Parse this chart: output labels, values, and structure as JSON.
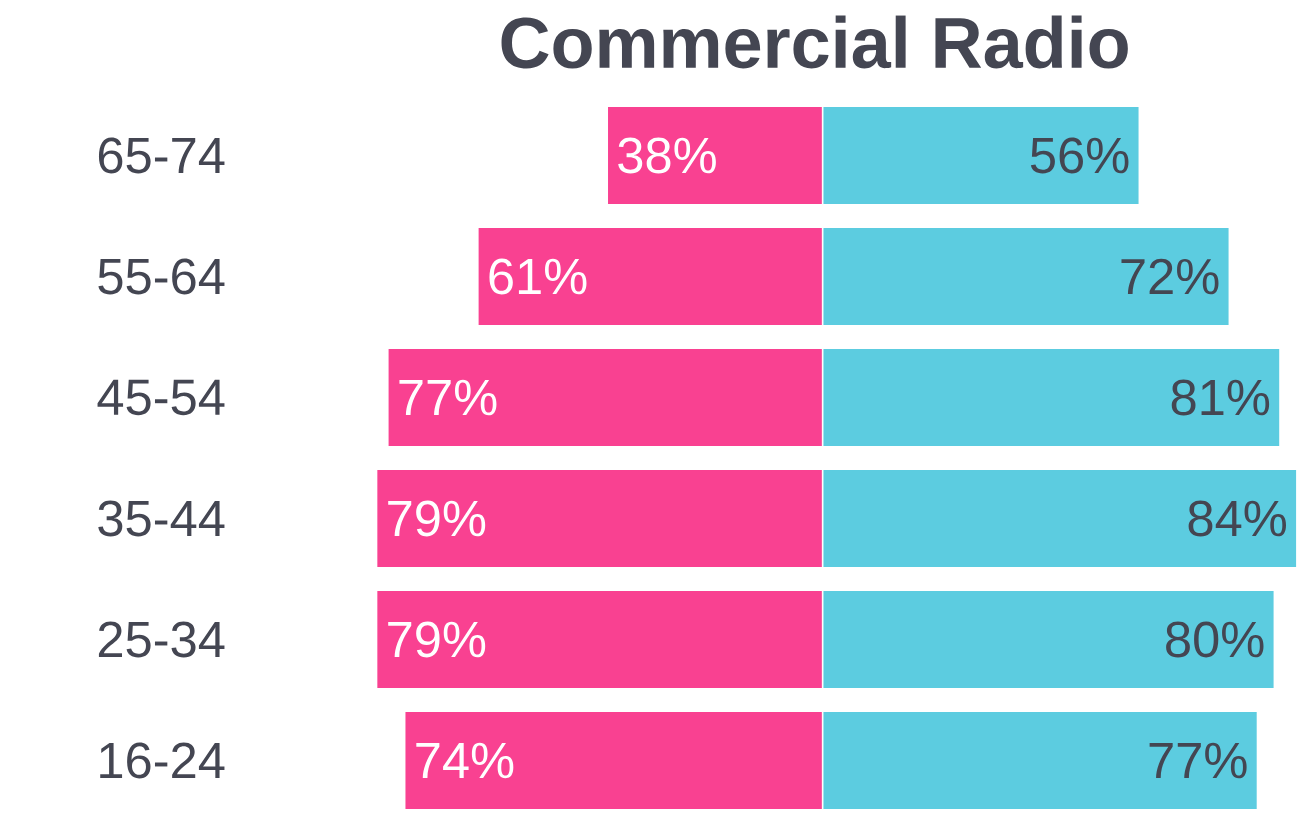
{
  "chart_data": [
    {
      "type": "bar",
      "title": "Commercial Radio",
      "orientation": "horizontal",
      "categories": [
        "65-74",
        "55-64",
        "45-54",
        "35-44",
        "25-34",
        "16-24"
      ],
      "series": [
        {
          "color": "#f94191",
          "values": [
            38,
            61,
            77,
            79,
            79,
            74
          ],
          "value_labels": [
            "38%",
            "61%",
            "77%",
            "79%",
            "79%",
            "74%"
          ]
        }
      ],
      "xlim": [
        79,
        0
      ],
      "tick_labels": "y"
    },
    {
      "type": "bar",
      "orientation": "horizontal",
      "categories": [
        null,
        null,
        null,
        null,
        null,
        null
      ],
      "series": [
        {
          "color": "#5ccce0",
          "values": [
            56,
            72,
            81,
            84,
            80,
            77
          ],
          "value_labels": [
            "56%",
            "72%",
            "81%",
            "84%",
            "80%",
            "77%"
          ]
        }
      ],
      "xlim": [
        0,
        84
      ],
      "tick_labels": false
    }
  ]
}
